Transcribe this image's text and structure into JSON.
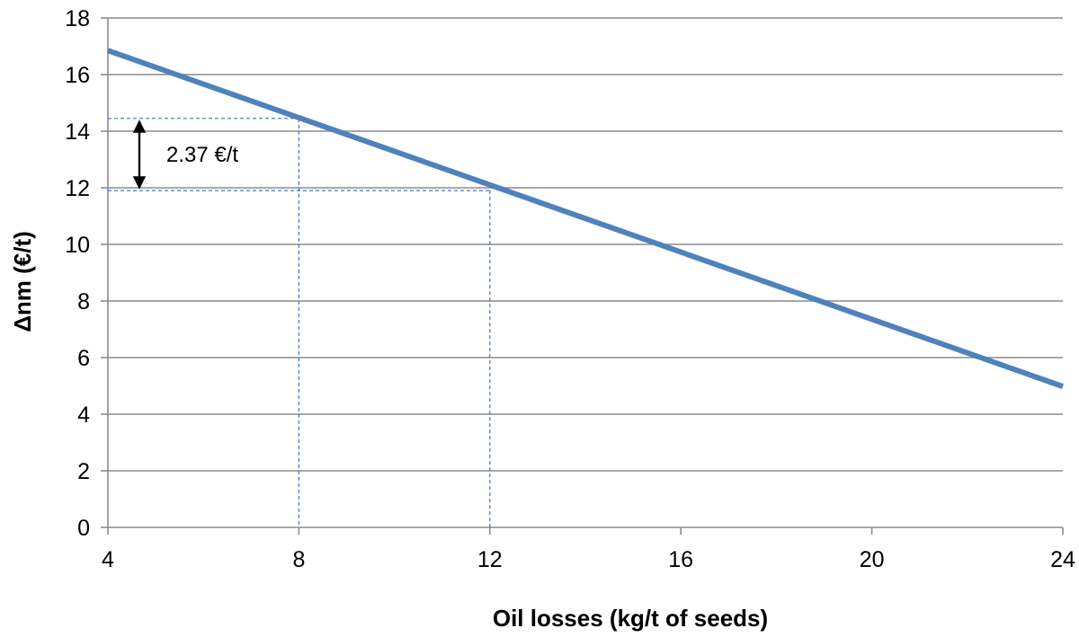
{
  "chart_data": {
    "type": "line",
    "title": "",
    "xlabel": "Oil losses (kg/t of seeds)",
    "ylabel": "Δnm (€/t)",
    "xlim": [
      4,
      24
    ],
    "ylim": [
      0,
      18
    ],
    "x_ticks": [
      4,
      8,
      12,
      16,
      20,
      24
    ],
    "y_ticks": [
      0,
      2,
      4,
      6,
      8,
      10,
      12,
      14,
      16,
      18
    ],
    "grid": "horizontal",
    "legend": "none",
    "series": [
      {
        "x": [
          4,
          24
        ],
        "y": [
          16.85,
          4.98
        ],
        "color": "#4F81BD"
      }
    ],
    "annotations": [
      {
        "label": "2.37 €/t",
        "x_from": 8,
        "x_to": 12,
        "y_from": 14.45,
        "y_to": 11.9,
        "color": "#4472C4"
      }
    ]
  }
}
